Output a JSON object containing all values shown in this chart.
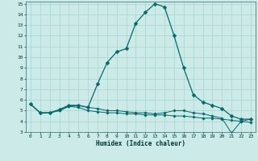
{
  "xlabel": "Humidex (Indice chaleur)",
  "xlim": [
    -0.5,
    23.5
  ],
  "ylim": [
    3,
    15.2
  ],
  "yticks": [
    3,
    4,
    5,
    6,
    7,
    8,
    9,
    10,
    11,
    12,
    13,
    14,
    15
  ],
  "xticks": [
    0,
    1,
    2,
    3,
    4,
    5,
    6,
    7,
    8,
    9,
    10,
    11,
    12,
    13,
    14,
    15,
    16,
    17,
    18,
    19,
    20,
    21,
    22,
    23
  ],
  "bg_color": "#cceae7",
  "line_color": "#006b6b",
  "grid_color": "#aad4d0",
  "lines": [
    {
      "x": [
        0,
        1,
        2,
        3,
        4,
        5,
        6,
        7,
        8,
        9,
        10,
        11,
        12,
        13,
        14,
        15,
        16,
        17,
        18,
        19,
        20,
        21,
        22,
        23
      ],
      "y": [
        5.6,
        4.8,
        4.8,
        5.1,
        5.5,
        5.5,
        5.3,
        7.5,
        9.5,
        10.5,
        10.8,
        13.2,
        14.2,
        15.0,
        14.7,
        12.0,
        9.0,
        6.5,
        5.8,
        5.5,
        5.2,
        4.5,
        4.2,
        4.2
      ],
      "marker": "D",
      "markersize": 2.5,
      "linewidth": 0.9
    },
    {
      "x": [
        0,
        1,
        2,
        3,
        4,
        5,
        6,
        7,
        8,
        9,
        10,
        11,
        12,
        13,
        14,
        15,
        16,
        17,
        18,
        19,
        20,
        21,
        22,
        23
      ],
      "y": [
        5.6,
        4.8,
        4.8,
        5.0,
        5.4,
        5.3,
        5.0,
        4.9,
        4.8,
        4.8,
        4.7,
        4.7,
        4.6,
        4.6,
        4.6,
        4.5,
        4.5,
        4.4,
        4.3,
        4.3,
        4.2,
        4.1,
        4.0,
        3.9
      ],
      "marker": "D",
      "markersize": 1.8,
      "linewidth": 0.7
    },
    {
      "x": [
        0,
        1,
        2,
        3,
        4,
        5,
        6,
        7,
        8,
        9,
        10,
        11,
        12,
        13,
        14,
        15,
        16,
        17,
        18,
        19,
        20,
        21,
        22,
        23
      ],
      "y": [
        5.6,
        4.8,
        4.8,
        5.0,
        5.4,
        5.5,
        5.3,
        5.2,
        5.0,
        5.0,
        4.9,
        4.8,
        4.8,
        4.7,
        4.8,
        5.0,
        5.0,
        4.8,
        4.7,
        4.5,
        4.3,
        2.9,
        4.0,
        4.2
      ],
      "marker": "D",
      "markersize": 1.8,
      "linewidth": 0.7
    }
  ]
}
